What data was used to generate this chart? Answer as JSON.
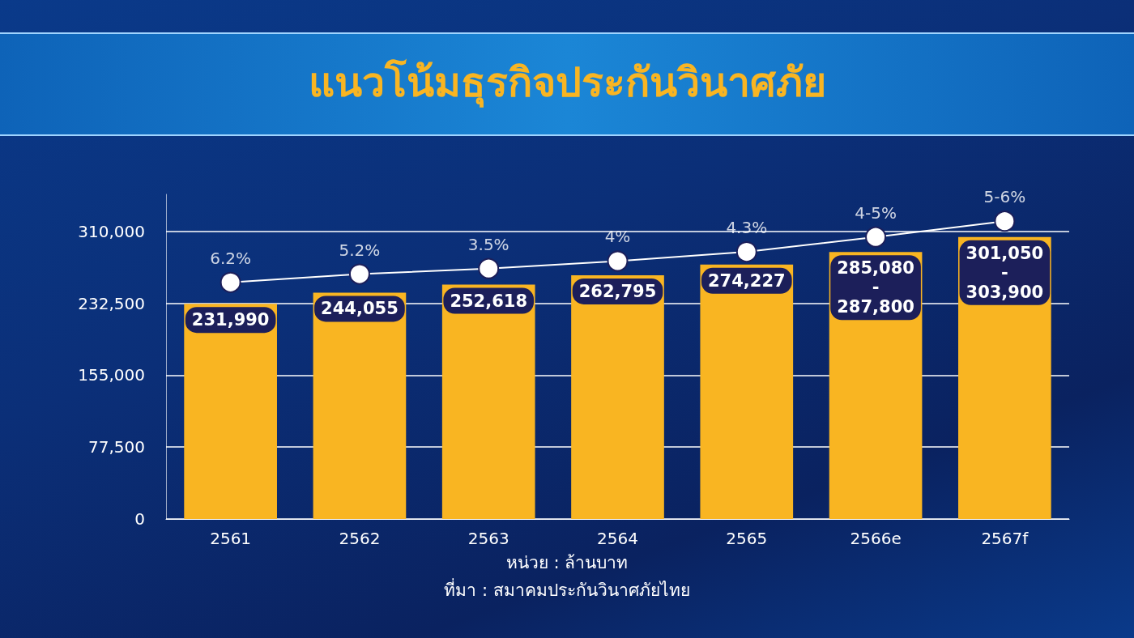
{
  "chart_data": {
    "type": "bar",
    "title": "แนวโน้มธุรกิจประกันวินาศภัย",
    "categories": [
      "2561",
      "2562",
      "2563",
      "2564",
      "2565",
      "2566e",
      "2567f"
    ],
    "series": [
      {
        "color": "#f9b522",
        "values": [
          231990,
          244055,
          252618,
          262795,
          274227,
          287800,
          303900
        ],
        "value_labels": [
          "231,990",
          "244,055",
          "252,618",
          "262,795",
          "274,227",
          "285,080\n-\n287,800",
          "301,050\n-\n303,900"
        ]
      },
      {
        "type": "line",
        "color": "#ffffff",
        "values": [
          255000,
          264000,
          270000,
          278000,
          288000,
          304000,
          321000
        ]
      }
    ],
    "ylim": [
      0,
      350000
    ],
    "yticks": [
      0,
      {
        "value": 77500,
        "label": "77,500"
      },
      {
        "value": 155000,
        "label": "155,000"
      },
      {
        "value": 232500,
        "label": "232,500"
      },
      {
        "value": 310000,
        "label": "310,000"
      }
    ],
    "grid": "y",
    "marker": "circle",
    "annotations": [
      {
        "text": "6.2%",
        "x": "2561",
        "y": 255000
      },
      {
        "text": "5.2%",
        "x": "2562",
        "y": 264000
      },
      {
        "text": "3.5%",
        "x": "2563",
        "y": 270000
      },
      {
        "text": "4%",
        "x": "2564",
        "y": 278000
      },
      {
        "text": "4.3%",
        "x": "2565",
        "y": 288000
      },
      {
        "text": "4-5%",
        "x": "2566e",
        "y": 304000
      },
      {
        "text": "5-6%",
        "x": "2567f",
        "y": 321000
      },
      "หน่วย : ล้านบาท",
      "ที่มา : สมาคมประกันวินาศภัยไทย"
    ]
  }
}
